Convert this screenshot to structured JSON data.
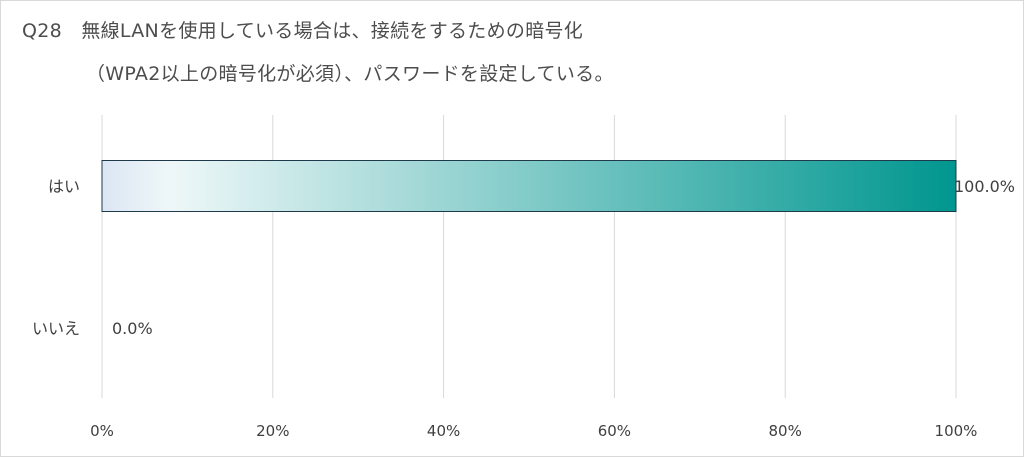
{
  "title": {
    "line1": "Q28　無線LANを使用している場合は、接続をするための暗号化",
    "line2": "（WPA2以上の暗号化が必須）、パスワードを設定している。"
  },
  "chart_data": {
    "type": "bar",
    "orientation": "horizontal",
    "categories": [
      "はい",
      "いいえ"
    ],
    "values": [
      100.0,
      0.0
    ],
    "value_labels": [
      "100.0%",
      "0.0%"
    ],
    "x_ticks": [
      "0%",
      "20%",
      "40%",
      "60%",
      "80%",
      "100%"
    ],
    "xlim": [
      0,
      100
    ],
    "grid": true,
    "legend": "none",
    "bar_gradient": [
      "#dce6f4",
      "#eef7f8",
      "#00968f"
    ],
    "bar_border": "#1f3a4a"
  }
}
